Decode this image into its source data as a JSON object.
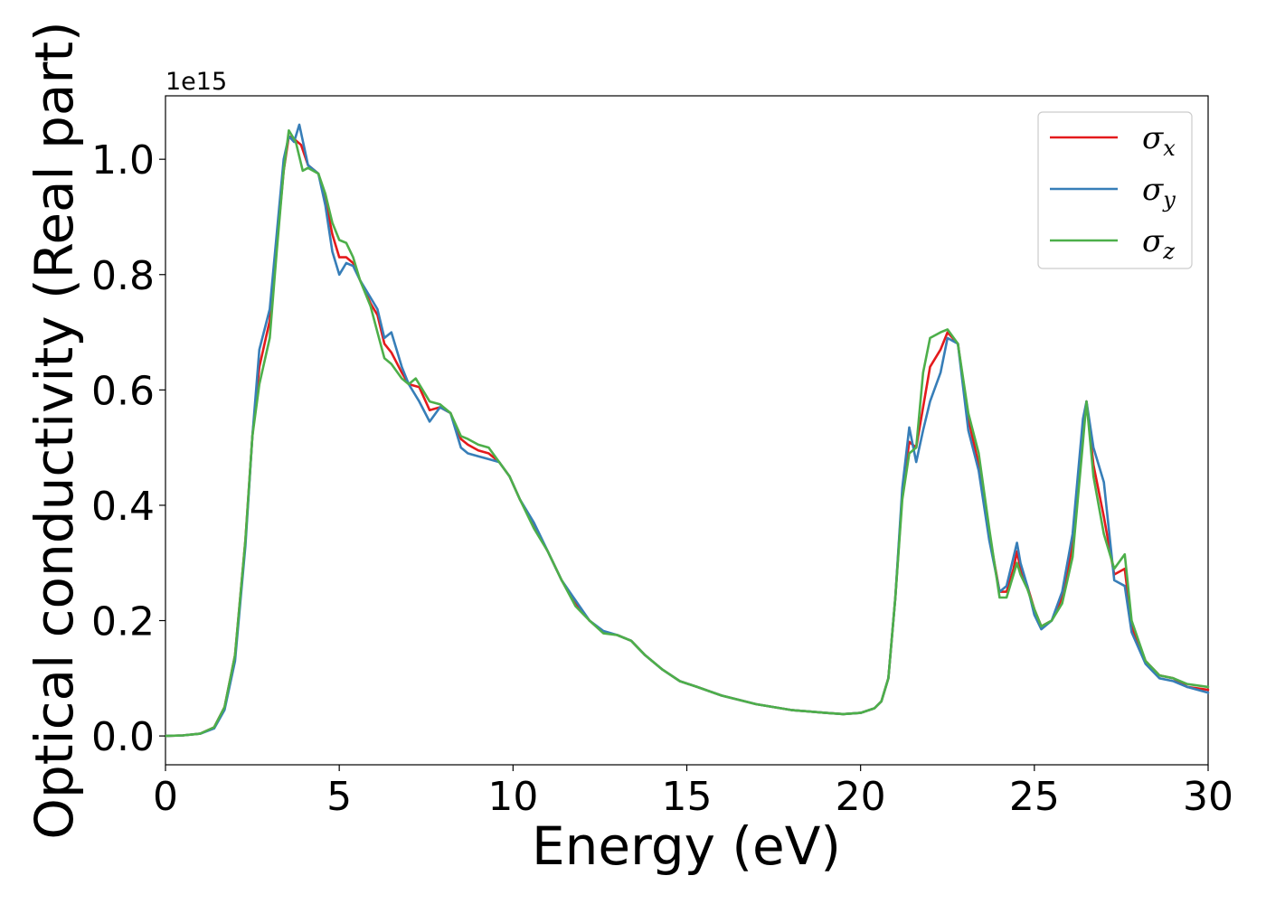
{
  "chart_data": {
    "type": "line",
    "xlabel": "Energy (eV)",
    "ylabel": "Optical conductivity (Real part)",
    "y_offset_label": "1e15",
    "xlim": [
      0,
      30
    ],
    "ylim": [
      -0.05,
      1.11
    ],
    "x_ticks": [
      0,
      5,
      10,
      15,
      20,
      25,
      30
    ],
    "x_tick_labels": [
      "0",
      "5",
      "10",
      "15",
      "20",
      "25",
      "30"
    ],
    "y_ticks": [
      0.0,
      0.2,
      0.4,
      0.6,
      0.8,
      1.0
    ],
    "y_tick_labels": [
      "0.0",
      "0.2",
      "0.4",
      "0.6",
      "0.8",
      "1.0"
    ],
    "grid": false,
    "legend_position": "top-right",
    "series": [
      {
        "name": "σx",
        "symbol": "σ",
        "subscript": "x",
        "color": "#e41a1c",
        "points": [
          [
            0,
            0
          ],
          [
            0.5,
            0.001
          ],
          [
            1.0,
            0.004
          ],
          [
            1.4,
            0.015
          ],
          [
            1.7,
            0.05
          ],
          [
            2.0,
            0.14
          ],
          [
            2.3,
            0.34
          ],
          [
            2.5,
            0.52
          ],
          [
            2.7,
            0.64
          ],
          [
            3.0,
            0.72
          ],
          [
            3.2,
            0.85
          ],
          [
            3.4,
            0.98
          ],
          [
            3.55,
            1.04
          ],
          [
            3.7,
            1.035
          ],
          [
            3.9,
            1.025
          ],
          [
            4.1,
            0.99
          ],
          [
            4.4,
            0.975
          ],
          [
            4.6,
            0.93
          ],
          [
            4.8,
            0.87
          ],
          [
            5.0,
            0.83
          ],
          [
            5.2,
            0.83
          ],
          [
            5.4,
            0.82
          ],
          [
            5.6,
            0.79
          ],
          [
            5.9,
            0.75
          ],
          [
            6.1,
            0.73
          ],
          [
            6.3,
            0.68
          ],
          [
            6.5,
            0.665
          ],
          [
            6.8,
            0.63
          ],
          [
            7.0,
            0.61
          ],
          [
            7.3,
            0.605
          ],
          [
            7.6,
            0.565
          ],
          [
            7.9,
            0.57
          ],
          [
            8.2,
            0.56
          ],
          [
            8.5,
            0.515
          ],
          [
            8.7,
            0.505
          ],
          [
            9.0,
            0.495
          ],
          [
            9.3,
            0.49
          ],
          [
            9.6,
            0.475
          ],
          [
            9.9,
            0.45
          ],
          [
            10.2,
            0.41
          ],
          [
            10.6,
            0.365
          ],
          [
            11.0,
            0.32
          ],
          [
            11.4,
            0.27
          ],
          [
            11.8,
            0.23
          ],
          [
            12.2,
            0.2
          ],
          [
            12.6,
            0.18
          ],
          [
            13.0,
            0.175
          ],
          [
            13.4,
            0.165
          ],
          [
            13.8,
            0.14
          ],
          [
            14.3,
            0.115
          ],
          [
            14.8,
            0.095
          ],
          [
            15.3,
            0.085
          ],
          [
            16.0,
            0.07
          ],
          [
            17.0,
            0.055
          ],
          [
            18.0,
            0.045
          ],
          [
            19.0,
            0.04
          ],
          [
            19.5,
            0.038
          ],
          [
            20.0,
            0.04
          ],
          [
            20.4,
            0.048
          ],
          [
            20.6,
            0.06
          ],
          [
            20.8,
            0.1
          ],
          [
            21.0,
            0.24
          ],
          [
            21.2,
            0.42
          ],
          [
            21.4,
            0.51
          ],
          [
            21.6,
            0.5
          ],
          [
            21.8,
            0.57
          ],
          [
            22.0,
            0.64
          ],
          [
            22.3,
            0.67
          ],
          [
            22.5,
            0.7
          ],
          [
            22.8,
            0.68
          ],
          [
            23.1,
            0.55
          ],
          [
            23.4,
            0.47
          ],
          [
            23.7,
            0.35
          ],
          [
            24.0,
            0.25
          ],
          [
            24.2,
            0.25
          ],
          [
            24.4,
            0.29
          ],
          [
            24.5,
            0.32
          ],
          [
            24.6,
            0.29
          ],
          [
            24.8,
            0.26
          ],
          [
            25.0,
            0.22
          ],
          [
            25.2,
            0.19
          ],
          [
            25.5,
            0.2
          ],
          [
            25.8,
            0.24
          ],
          [
            26.1,
            0.33
          ],
          [
            26.4,
            0.53
          ],
          [
            26.5,
            0.58
          ],
          [
            26.7,
            0.47
          ],
          [
            27.0,
            0.38
          ],
          [
            27.3,
            0.28
          ],
          [
            27.6,
            0.29
          ],
          [
            27.8,
            0.19
          ],
          [
            28.2,
            0.13
          ],
          [
            28.6,
            0.105
          ],
          [
            29.0,
            0.1
          ],
          [
            29.4,
            0.085
          ],
          [
            30.0,
            0.08
          ]
        ]
      },
      {
        "name": "σy",
        "symbol": "σ",
        "subscript": "y",
        "color": "#377eb8",
        "points": [
          [
            0,
            0
          ],
          [
            0.5,
            0.001
          ],
          [
            1.0,
            0.004
          ],
          [
            1.4,
            0.013
          ],
          [
            1.7,
            0.045
          ],
          [
            2.0,
            0.13
          ],
          [
            2.3,
            0.33
          ],
          [
            2.5,
            0.52
          ],
          [
            2.7,
            0.67
          ],
          [
            3.0,
            0.74
          ],
          [
            3.2,
            0.87
          ],
          [
            3.4,
            1.0
          ],
          [
            3.55,
            1.04
          ],
          [
            3.7,
            1.03
          ],
          [
            3.85,
            1.06
          ],
          [
            4.1,
            0.99
          ],
          [
            4.4,
            0.975
          ],
          [
            4.6,
            0.92
          ],
          [
            4.8,
            0.84
          ],
          [
            5.0,
            0.8
          ],
          [
            5.2,
            0.82
          ],
          [
            5.4,
            0.815
          ],
          [
            5.6,
            0.79
          ],
          [
            5.9,
            0.76
          ],
          [
            6.1,
            0.74
          ],
          [
            6.3,
            0.69
          ],
          [
            6.5,
            0.7
          ],
          [
            6.8,
            0.64
          ],
          [
            7.0,
            0.61
          ],
          [
            7.3,
            0.58
          ],
          [
            7.6,
            0.545
          ],
          [
            7.9,
            0.57
          ],
          [
            8.2,
            0.56
          ],
          [
            8.5,
            0.5
          ],
          [
            8.7,
            0.49
          ],
          [
            9.0,
            0.485
          ],
          [
            9.3,
            0.48
          ],
          [
            9.6,
            0.475
          ],
          [
            9.9,
            0.45
          ],
          [
            10.2,
            0.41
          ],
          [
            10.6,
            0.37
          ],
          [
            11.0,
            0.32
          ],
          [
            11.4,
            0.27
          ],
          [
            11.8,
            0.235
          ],
          [
            12.2,
            0.2
          ],
          [
            12.6,
            0.182
          ],
          [
            13.0,
            0.175
          ],
          [
            13.4,
            0.165
          ],
          [
            13.8,
            0.14
          ],
          [
            14.3,
            0.115
          ],
          [
            14.8,
            0.095
          ],
          [
            15.3,
            0.085
          ],
          [
            16.0,
            0.07
          ],
          [
            17.0,
            0.055
          ],
          [
            18.0,
            0.045
          ],
          [
            19.0,
            0.04
          ],
          [
            19.5,
            0.038
          ],
          [
            20.0,
            0.04
          ],
          [
            20.4,
            0.048
          ],
          [
            20.6,
            0.06
          ],
          [
            20.8,
            0.1
          ],
          [
            21.0,
            0.24
          ],
          [
            21.2,
            0.43
          ],
          [
            21.4,
            0.535
          ],
          [
            21.6,
            0.475
          ],
          [
            21.8,
            0.53
          ],
          [
            22.0,
            0.58
          ],
          [
            22.3,
            0.63
          ],
          [
            22.5,
            0.69
          ],
          [
            22.8,
            0.68
          ],
          [
            23.1,
            0.53
          ],
          [
            23.4,
            0.46
          ],
          [
            23.7,
            0.34
          ],
          [
            24.0,
            0.25
          ],
          [
            24.2,
            0.26
          ],
          [
            24.4,
            0.31
          ],
          [
            24.5,
            0.335
          ],
          [
            24.6,
            0.3
          ],
          [
            24.8,
            0.26
          ],
          [
            25.0,
            0.21
          ],
          [
            25.2,
            0.185
          ],
          [
            25.5,
            0.2
          ],
          [
            25.8,
            0.25
          ],
          [
            26.1,
            0.35
          ],
          [
            26.4,
            0.55
          ],
          [
            26.5,
            0.58
          ],
          [
            26.7,
            0.5
          ],
          [
            27.0,
            0.44
          ],
          [
            27.3,
            0.27
          ],
          [
            27.6,
            0.26
          ],
          [
            27.8,
            0.18
          ],
          [
            28.2,
            0.125
          ],
          [
            28.6,
            0.1
          ],
          [
            29.0,
            0.095
          ],
          [
            29.4,
            0.085
          ],
          [
            30.0,
            0.075
          ]
        ]
      },
      {
        "name": "σz",
        "symbol": "σ",
        "subscript": "z",
        "color": "#4daf4a",
        "points": [
          [
            0,
            0
          ],
          [
            0.5,
            0.001
          ],
          [
            1.0,
            0.004
          ],
          [
            1.4,
            0.015
          ],
          [
            1.7,
            0.05
          ],
          [
            2.0,
            0.14
          ],
          [
            2.3,
            0.34
          ],
          [
            2.5,
            0.52
          ],
          [
            2.7,
            0.61
          ],
          [
            3.0,
            0.69
          ],
          [
            3.2,
            0.84
          ],
          [
            3.4,
            0.98
          ],
          [
            3.55,
            1.05
          ],
          [
            3.75,
            1.03
          ],
          [
            3.95,
            0.98
          ],
          [
            4.1,
            0.985
          ],
          [
            4.4,
            0.975
          ],
          [
            4.6,
            0.94
          ],
          [
            4.8,
            0.89
          ],
          [
            5.0,
            0.86
          ],
          [
            5.2,
            0.855
          ],
          [
            5.4,
            0.83
          ],
          [
            5.6,
            0.79
          ],
          [
            5.9,
            0.745
          ],
          [
            6.1,
            0.7
          ],
          [
            6.3,
            0.655
          ],
          [
            6.5,
            0.645
          ],
          [
            6.8,
            0.62
          ],
          [
            7.0,
            0.61
          ],
          [
            7.2,
            0.62
          ],
          [
            7.6,
            0.58
          ],
          [
            7.9,
            0.575
          ],
          [
            8.2,
            0.56
          ],
          [
            8.5,
            0.52
          ],
          [
            8.7,
            0.515
          ],
          [
            9.0,
            0.505
          ],
          [
            9.3,
            0.5
          ],
          [
            9.6,
            0.475
          ],
          [
            9.9,
            0.45
          ],
          [
            10.2,
            0.41
          ],
          [
            10.6,
            0.36
          ],
          [
            11.0,
            0.32
          ],
          [
            11.4,
            0.27
          ],
          [
            11.8,
            0.225
          ],
          [
            12.2,
            0.2
          ],
          [
            12.6,
            0.178
          ],
          [
            13.0,
            0.175
          ],
          [
            13.4,
            0.165
          ],
          [
            13.8,
            0.14
          ],
          [
            14.3,
            0.115
          ],
          [
            14.8,
            0.095
          ],
          [
            15.3,
            0.085
          ],
          [
            16.0,
            0.07
          ],
          [
            17.0,
            0.055
          ],
          [
            18.0,
            0.045
          ],
          [
            19.0,
            0.04
          ],
          [
            19.5,
            0.038
          ],
          [
            20.0,
            0.04
          ],
          [
            20.4,
            0.048
          ],
          [
            20.6,
            0.06
          ],
          [
            20.8,
            0.1
          ],
          [
            21.0,
            0.24
          ],
          [
            21.2,
            0.41
          ],
          [
            21.4,
            0.49
          ],
          [
            21.6,
            0.5
          ],
          [
            21.8,
            0.63
          ],
          [
            22.0,
            0.69
          ],
          [
            22.3,
            0.7
          ],
          [
            22.5,
            0.705
          ],
          [
            22.8,
            0.68
          ],
          [
            23.1,
            0.56
          ],
          [
            23.4,
            0.49
          ],
          [
            23.7,
            0.36
          ],
          [
            24.0,
            0.24
          ],
          [
            24.2,
            0.24
          ],
          [
            24.4,
            0.28
          ],
          [
            24.5,
            0.3
          ],
          [
            24.6,
            0.28
          ],
          [
            24.8,
            0.255
          ],
          [
            25.0,
            0.22
          ],
          [
            25.2,
            0.19
          ],
          [
            25.5,
            0.2
          ],
          [
            25.8,
            0.23
          ],
          [
            26.1,
            0.31
          ],
          [
            26.4,
            0.51
          ],
          [
            26.5,
            0.58
          ],
          [
            26.7,
            0.45
          ],
          [
            27.0,
            0.35
          ],
          [
            27.3,
            0.29
          ],
          [
            27.6,
            0.315
          ],
          [
            27.8,
            0.2
          ],
          [
            28.2,
            0.13
          ],
          [
            28.6,
            0.105
          ],
          [
            29.0,
            0.1
          ],
          [
            29.4,
            0.09
          ],
          [
            30.0,
            0.085
          ]
        ]
      }
    ]
  }
}
